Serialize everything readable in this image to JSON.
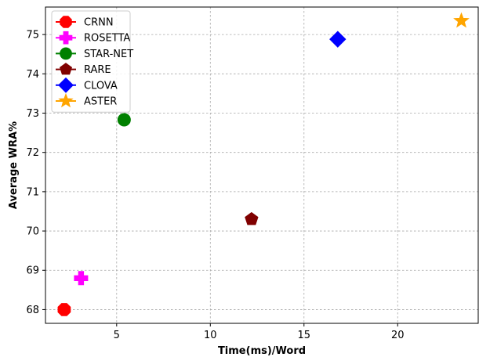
{
  "chart_data": {
    "type": "scatter",
    "title": "",
    "xlabel": "Time(ms)/Word",
    "ylabel": "Average WRA%",
    "xlim": [
      1.2,
      24.3
    ],
    "ylim": [
      67.65,
      75.7
    ],
    "xticks": [
      5,
      10,
      15,
      20
    ],
    "yticks": [
      68,
      69,
      70,
      71,
      72,
      73,
      74,
      75
    ],
    "grid": true,
    "legend_position": "top-left",
    "series": [
      {
        "name": "CRNN",
        "marker": "octagon",
        "color": "#ff0000",
        "x": 2.2,
        "y": 68.0
      },
      {
        "name": "ROSETTA",
        "marker": "plus",
        "color": "#ff00ff",
        "x": 3.1,
        "y": 68.8
      },
      {
        "name": "STAR-NET",
        "marker": "circle",
        "color": "#008000",
        "x": 5.4,
        "y": 72.83
      },
      {
        "name": "RARE",
        "marker": "pentagon",
        "color": "#800000",
        "x": 12.2,
        "y": 70.3
      },
      {
        "name": "CLOVA",
        "marker": "diamond",
        "color": "#0000ff",
        "x": 16.8,
        "y": 74.88
      },
      {
        "name": "ASTER",
        "marker": "star",
        "color": "#ffa500",
        "x": 23.4,
        "y": 75.35
      }
    ]
  }
}
